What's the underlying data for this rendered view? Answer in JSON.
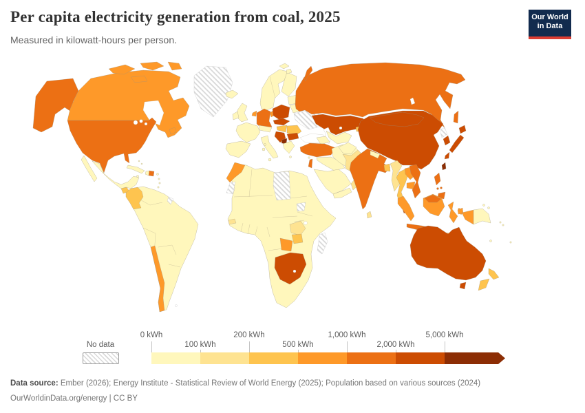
{
  "header": {
    "title": "Per capita electricity generation from coal, 2025",
    "subtitle": "Measured in kilowatt-hours per person.",
    "logo_line1": "Our World",
    "logo_line2": "in Data",
    "logo_bg": "#122b4e",
    "logo_accent": "#dc3d33"
  },
  "legend": {
    "no_data_label": "No data",
    "tick_labels": [
      "0 kWh",
      "100 kWh",
      "200 kWh",
      "500 kWh",
      "1,000 kWh",
      "2,000 kWh",
      "5,000 kWh"
    ]
  },
  "palette": {
    "bins": [
      "#fff7bc",
      "#fee391",
      "#fec44f",
      "#fe9929",
      "#ec7014",
      "#cc4c02",
      "#8c2d04"
    ],
    "no_data_pattern": "#d8d8d8",
    "border": "#9a9181"
  },
  "chart_data": {
    "type": "choropleth-map",
    "title": "Per capita electricity generation from coal, 2025",
    "unit": "kilowatt-hours per person",
    "bin_edges": [
      0,
      100,
      200,
      500,
      1000,
      2000,
      5000
    ],
    "legend_position": "bottom",
    "regions": {
      "united-states": 4,
      "canada": 3,
      "greenland": "nodata",
      "iceland": 0,
      "mexico": 0,
      "guatemala": 2,
      "central-america": 0,
      "cuba": 0,
      "jamaica": 0,
      "haiti": 0,
      "dominican-republic": 4,
      "puerto-rico": 0,
      "bahamas": 0,
      "lesser-antilles": 0,
      "south-america": 0,
      "colombia": 2,
      "chile": 3,
      "french-guiana": "nodata",
      "falkland-islands": "nodata",
      "norway-sweden": 0,
      "finland": 0,
      "denmark": 3,
      "united-kingdom": 0,
      "ireland": 0,
      "iberia": 0,
      "france": 0,
      "italy": 0,
      "germany": 4,
      "netherlands": 3,
      "alpine-states": 0,
      "poland": 5,
      "czechia-slovakia": 5,
      "hungary-croatia": 2,
      "romania": 2,
      "western-balkans": 5,
      "kosovo-north-macedonia": 6,
      "bulgaria": 5,
      "greece": 0,
      "baltics": 0,
      "belarus": 0,
      "ukraine": "nodata",
      "russia": 4,
      "svalbard": 0,
      "kazakhstan": 5,
      "caucasus": 0,
      "central-asia": 0,
      "kyrgyzstan": 2,
      "turkey": 4,
      "cyprus": 0,
      "syria-iraq": 0,
      "israel": 4,
      "saudi-arabia": 0,
      "yemen": 0,
      "oman-uae": 1,
      "iran": 0,
      "afghanistan": 0,
      "pakistan": 1,
      "india": 4,
      "nepal": 0,
      "bangladesh": 2,
      "sri-lanka": 1,
      "myanmar": 1,
      "thailand": 2,
      "laos": 3,
      "cambodia": 3,
      "vietnam": 4,
      "malaysia-peninsular": 5,
      "china": 5,
      "mongolia": 5,
      "north-korea": "nodata",
      "south-korea": 5,
      "japan": 5,
      "taiwan": 6,
      "philippines": 4,
      "sumatra": 3,
      "java": 4,
      "borneo-indonesia": 3,
      "borneo-malaysia": 4,
      "sulawesi": 3,
      "maluku": 3,
      "lesser-sunda": 3,
      "west-papua": 3,
      "papua-new-guinea": 0,
      "solomon-islands": 0,
      "new-caledonia": 0,
      "fiji": 0,
      "australia": 5,
      "tasmania": 5,
      "new-zealand": 2,
      "africa": 0,
      "morocco": 3,
      "western-sahara": "nodata",
      "libya": "nodata",
      "south-sudan": "nodata",
      "madagascar": "nodata",
      "senegal": 1,
      "zambia": 1,
      "zimbabwe": 2,
      "botswana": 3,
      "south-africa": 5
    }
  },
  "footer": {
    "source_label": "Data source:",
    "source_text": "Ember (2026); Energy Institute - Statistical Review of World Energy (2025); Population based on various sources (2024)",
    "link": "OurWorldinData.org/energy | CC BY"
  }
}
